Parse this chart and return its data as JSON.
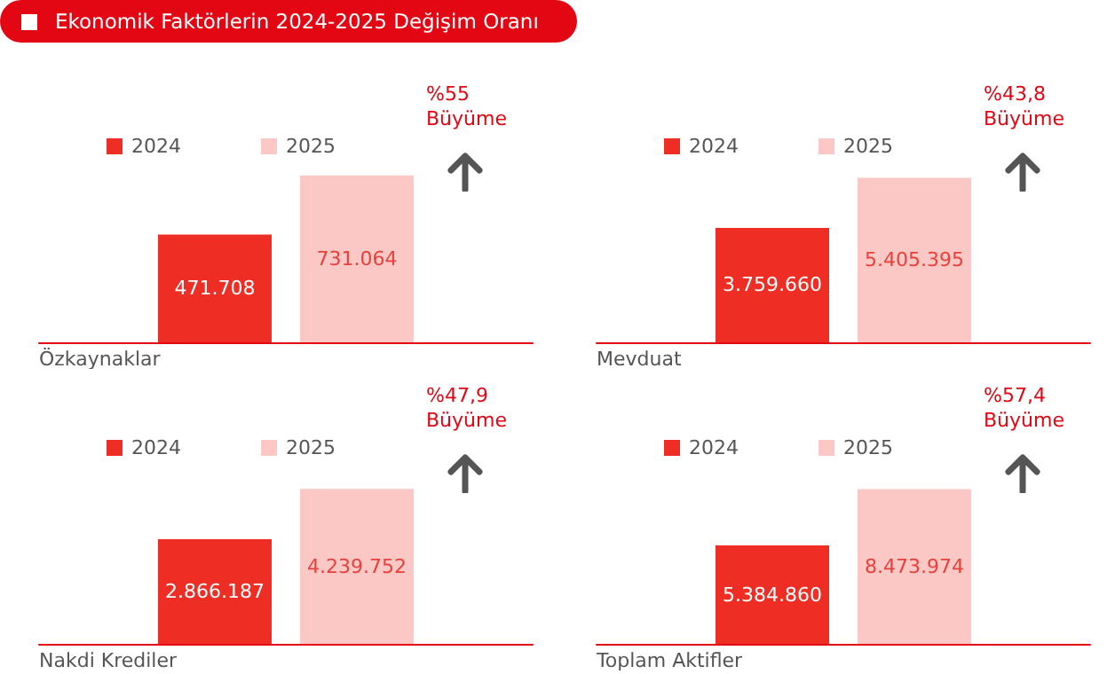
{
  "chart_data": [
    {
      "type": "bar",
      "title": "Ekonomik Faktörlerin 2024-2025 Değişim Oranı",
      "xlabel": "Özkaynaklar",
      "categories": [
        null
      ],
      "legend": "top",
      "annotations": [
        "%55\nBüyüme"
      ],
      "series": [
        {
          "name": "2024",
          "color": "#ee2e24",
          "values": [
            471708
          ],
          "value_labels": [
            "471.708"
          ]
        },
        {
          "name": "2025",
          "color": "#fbc8c5",
          "values": [
            731064
          ],
          "value_labels": [
            "731.064"
          ]
        }
      ]
    },
    {
      "type": "bar",
      "xlabel": "Mevduat",
      "categories": [
        null
      ],
      "legend": "top",
      "annotations": [
        "%43,8\nBüyüme"
      ],
      "series": [
        {
          "name": "2024",
          "color": "#ee2e24",
          "values": [
            3759660
          ],
          "value_labels": [
            "3.759.660"
          ]
        },
        {
          "name": "2025",
          "color": "#fbc8c5",
          "values": [
            5405395
          ],
          "value_labels": [
            "5.405.395"
          ]
        }
      ]
    },
    {
      "type": "bar",
      "xlabel": "Nakdi Krediler",
      "categories": [
        null
      ],
      "legend": "top",
      "annotations": [
        "%47,9\nBüyüme"
      ],
      "series": [
        {
          "name": "2024",
          "color": "#ee2e24",
          "values": [
            2866187
          ],
          "value_labels": [
            "2.866.187"
          ]
        },
        {
          "name": "2025",
          "color": "#fbc8c5",
          "values": [
            4239752
          ],
          "value_labels": [
            "4.239.752"
          ]
        }
      ]
    },
    {
      "type": "bar",
      "xlabel": "Toplam Aktifler",
      "categories": [
        null
      ],
      "legend": "top",
      "annotations": [
        "%57,4\nBüyüme"
      ],
      "series": [
        {
          "name": "2024",
          "color": "#ee2e24",
          "values": [
            5384860
          ],
          "value_labels": [
            "5.384.860"
          ]
        },
        {
          "name": "2025",
          "color": "#fbc8c5",
          "values": [
            8473974
          ],
          "value_labels": [
            "8.473.974"
          ]
        }
      ]
    }
  ]
}
